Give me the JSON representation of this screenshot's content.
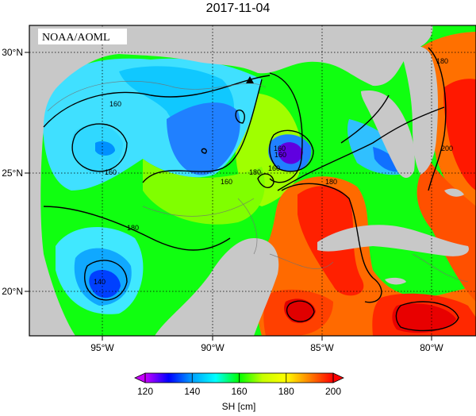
{
  "title": "2017-11-04",
  "credit": "NOAA/AOML",
  "map": {
    "lon_range": [
      -98.0,
      -78.0
    ],
    "lat_range": [
      18.0,
      31.0
    ],
    "lon_ticks": [
      "95°W",
      "90°W",
      "85°W",
      "80°W"
    ],
    "lat_ticks": [
      "20°N",
      "25°N",
      "30°N"
    ],
    "gridlines": true,
    "land_color": "#c8c8c8",
    "marker": "triangle"
  },
  "contour_labels": [
    "160",
    "160",
    "160",
    "160",
    "160",
    "160",
    "180",
    "180",
    "180",
    "180",
    "140",
    "200"
  ],
  "colorbar": {
    "label": "SH [cm]",
    "ticks": [
      "120",
      "140",
      "160",
      "180",
      "200"
    ],
    "range": [
      120,
      200
    ],
    "colors": [
      "#c800ff",
      "#0000ff",
      "#00a0ff",
      "#00ffff",
      "#00ff00",
      "#c8ff00",
      "#ffff00",
      "#ff8000",
      "#ff0000"
    ]
  }
}
